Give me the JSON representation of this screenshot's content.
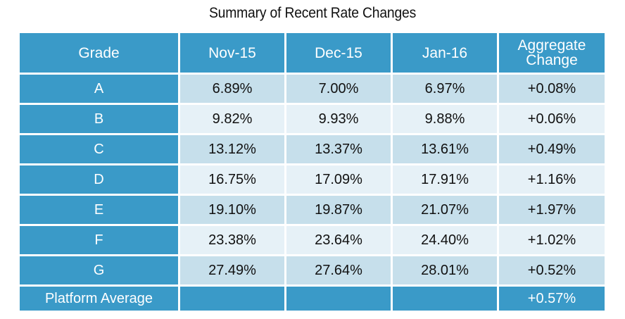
{
  "title": "Summary of Recent Rate Changes",
  "table": {
    "headers": [
      "Grade",
      "Nov-15",
      "Dec-15",
      "Jan-16",
      "Aggregate Change"
    ],
    "rows": [
      {
        "grade": "A",
        "nov": "6.89%",
        "dec": "7.00%",
        "jan": "6.97%",
        "agg": "+0.08%"
      },
      {
        "grade": "B",
        "nov": "9.82%",
        "dec": "9.93%",
        "jan": "9.88%",
        "agg": "+0.06%"
      },
      {
        "grade": "C",
        "nov": "13.12%",
        "dec": "13.37%",
        "jan": "13.61%",
        "agg": "+0.49%"
      },
      {
        "grade": "D",
        "nov": "16.75%",
        "dec": "17.09%",
        "jan": "17.91%",
        "agg": "+1.16%"
      },
      {
        "grade": "E",
        "nov": "19.10%",
        "dec": "19.87%",
        "jan": "21.07%",
        "agg": "+1.97%"
      },
      {
        "grade": "F",
        "nov": "23.38%",
        "dec": "23.64%",
        "jan": "24.40%",
        "agg": "+1.02%"
      },
      {
        "grade": "G",
        "nov": "27.49%",
        "dec": "27.64%",
        "jan": "28.01%",
        "agg": "+0.52%"
      }
    ],
    "footer": {
      "label": "Platform Average",
      "agg": "+0.57%"
    }
  },
  "colors": {
    "header_blue": "#3a9ac8",
    "row_dark": "#c6dfeb",
    "row_light": "#e6f1f7"
  }
}
